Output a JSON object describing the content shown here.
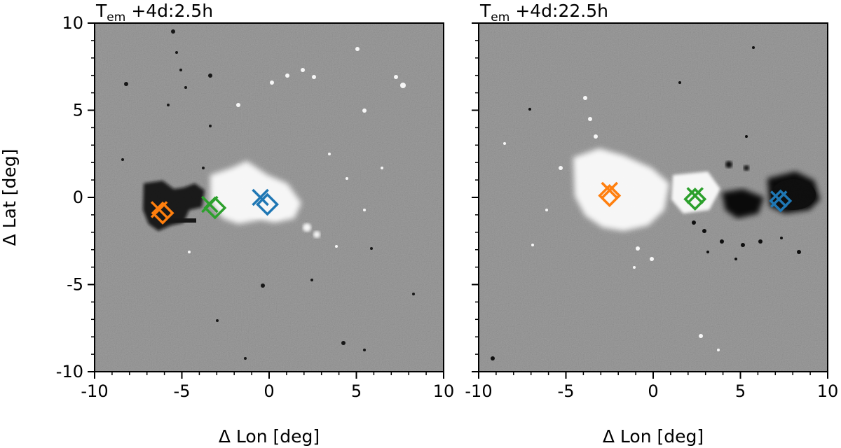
{
  "chart_data": [
    {
      "type": "scatter",
      "title_main": "T",
      "title_sub": "em",
      "title_rest": "+4d:2.5h",
      "xlabel": "Δ Lon [deg]",
      "ylabel": "Δ Lat [deg]",
      "xlim": [
        -10,
        10
      ],
      "ylim": [
        -10,
        10
      ],
      "xticks": [
        "-10",
        "-5",
        "0",
        "5",
        "10"
      ],
      "yticks": [
        "10",
        "5",
        "0",
        "-5",
        "-10"
      ],
      "show_xlabels": true,
      "show_ylabels": true,
      "grid": false,
      "background": "grayscale magnetogram",
      "series": [
        {
          "marker_x": "x",
          "marker_d": "diamond",
          "color": "#ff7f0e",
          "x_marker": [
            -6.3,
            -0.7
          ],
          "d_marker": [
            -6.1,
            -0.9
          ]
        },
        {
          "marker_x": "x",
          "marker_d": "diamond",
          "color": "#2ca02c",
          "x_marker": [
            -3.4,
            -0.4
          ],
          "d_marker": [
            -3.1,
            -0.6
          ]
        },
        {
          "marker_x": "x",
          "marker_d": "diamond",
          "color": "#1f77b4",
          "x_marker": [
            -0.5,
            0.0
          ],
          "d_marker": [
            -0.1,
            -0.4
          ]
        }
      ]
    },
    {
      "type": "scatter",
      "title_main": "T",
      "title_sub": "em",
      "title_rest": "+4d:22.5h",
      "xlabel": "Δ Lon [deg]",
      "ylabel": "",
      "xlim": [
        -10,
        10
      ],
      "ylim": [
        -10,
        10
      ],
      "xticks": [
        "-10",
        "-5",
        "0",
        "5",
        "10"
      ],
      "yticks": [
        "",
        "",
        "",
        "",
        ""
      ],
      "show_xlabels": true,
      "show_ylabels": false,
      "grid": false,
      "background": "grayscale magnetogram",
      "series": [
        {
          "marker_x": "x",
          "marker_d": "diamond",
          "color": "#ff7f0e",
          "x_marker": [
            -2.5,
            0.4
          ],
          "d_marker": [
            -2.5,
            0.1
          ]
        },
        {
          "marker_x": "x",
          "marker_d": "diamond",
          "color": "#2ca02c",
          "x_marker": [
            2.4,
            0.1
          ],
          "d_marker": [
            2.4,
            -0.1
          ]
        },
        {
          "marker_x": "x",
          "marker_d": "diamond",
          "color": "#1f77b4",
          "x_marker": [
            7.2,
            -0.1
          ],
          "d_marker": [
            7.3,
            -0.2
          ]
        }
      ]
    }
  ]
}
